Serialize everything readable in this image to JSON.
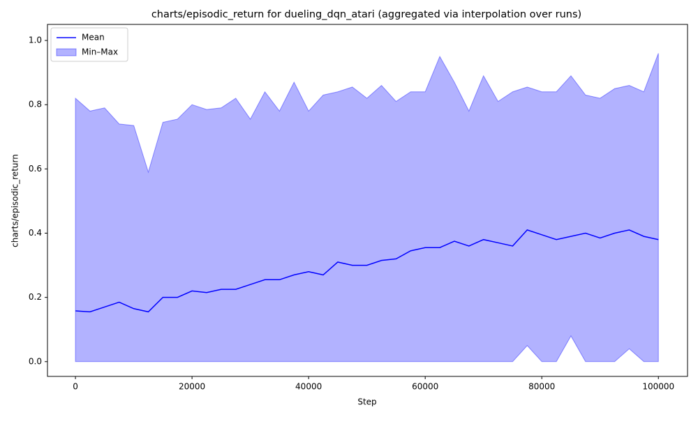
{
  "chart_data": {
    "type": "line",
    "title": "charts/episodic_return for dueling_dqn_atari (aggregated via interpolation over runs)",
    "x_label": "Step",
    "y_label": "charts/episodic_return",
    "x": [
      0,
      2500,
      5000,
      7500,
      10000,
      12500,
      15000,
      17500,
      20000,
      22500,
      25000,
      27500,
      30000,
      32500,
      35000,
      37500,
      40000,
      42500,
      45000,
      47500,
      50000,
      52500,
      55000,
      57500,
      60000,
      62500,
      65000,
      67500,
      70000,
      72500,
      75000,
      77500,
      80000,
      82500,
      85000,
      87500,
      90000,
      92500,
      95000,
      97500,
      100000
    ],
    "series": [
      {
        "name": "Mean",
        "color": "#0000ff",
        "values": [
          0.158,
          0.155,
          0.17,
          0.185,
          0.165,
          0.155,
          0.2,
          0.2,
          0.22,
          0.215,
          0.225,
          0.225,
          0.24,
          0.255,
          0.255,
          0.27,
          0.28,
          0.27,
          0.31,
          0.3,
          0.3,
          0.315,
          0.32,
          0.345,
          0.355,
          0.355,
          0.375,
          0.36,
          0.38,
          0.37,
          0.36,
          0.41,
          0.395,
          0.38,
          0.39,
          0.4,
          0.385,
          0.4,
          0.41,
          0.39,
          0.38
        ]
      },
      {
        "name": "Min–Max",
        "color": "#0000ff",
        "kind": "band",
        "opacity": 0.3,
        "upper": [
          0.82,
          0.78,
          0.79,
          0.74,
          0.735,
          0.59,
          0.745,
          0.755,
          0.8,
          0.785,
          0.79,
          0.82,
          0.755,
          0.84,
          0.78,
          0.87,
          0.78,
          0.83,
          0.84,
          0.855,
          0.82,
          0.86,
          0.81,
          0.84,
          0.84,
          0.95,
          0.87,
          0.78,
          0.89,
          0.81,
          0.84,
          0.855,
          0.84,
          0.84,
          0.89,
          0.83,
          0.82,
          0.85,
          0.86,
          0.84,
          0.96
        ],
        "lower": [
          0,
          0,
          0,
          0,
          0,
          0,
          0,
          0,
          0,
          0,
          0,
          0,
          0,
          0,
          0,
          0,
          0,
          0,
          0,
          0,
          0,
          0,
          0,
          0,
          0,
          0,
          0,
          0,
          0,
          0,
          0,
          0.05,
          0,
          0,
          0.08,
          0,
          0,
          0,
          0.04,
          0,
          0
        ]
      }
    ],
    "xlim": [
      -4800,
      105000
    ],
    "ylim": [
      -0.046,
      1.05
    ],
    "xticks": [
      0,
      20000,
      40000,
      60000,
      80000,
      100000
    ],
    "yticks": [
      {
        "value": 0,
        "label": "0.0"
      },
      0.2,
      0.4,
      0.6,
      0.8,
      {
        "value": 1,
        "label": "1.0"
      }
    ],
    "legend": "upper left",
    "grid": false
  }
}
